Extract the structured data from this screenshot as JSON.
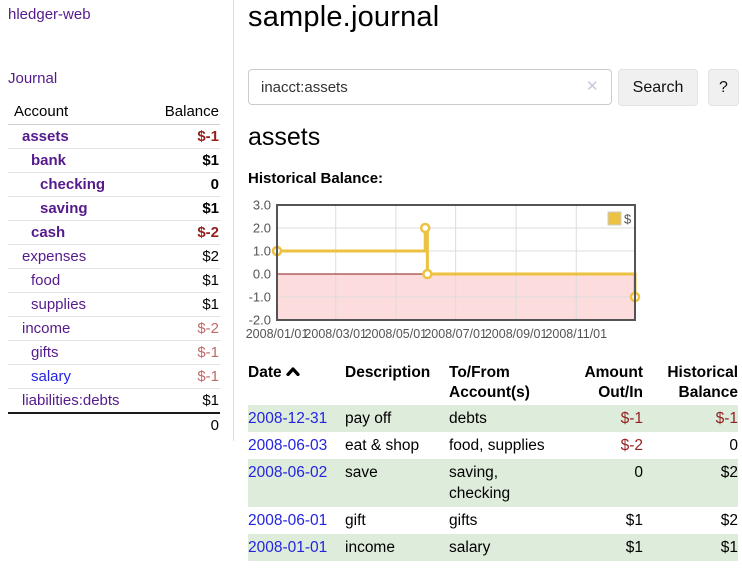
{
  "app": {
    "brand": "hledger-web"
  },
  "sidebar": {
    "journal_link": "Journal",
    "accounts": {
      "col_account": "Account",
      "col_balance": "Balance",
      "rows": [
        {
          "name": "assets",
          "balance": "$-1"
        },
        {
          "name": "bank",
          "balance": "$1"
        },
        {
          "name": "checking",
          "balance": "0"
        },
        {
          "name": "saving",
          "balance": "$1"
        },
        {
          "name": "cash",
          "balance": "$-2"
        },
        {
          "name": "expenses",
          "balance": "$2"
        },
        {
          "name": "food",
          "balance": "$1"
        },
        {
          "name": "supplies",
          "balance": "$1"
        },
        {
          "name": "income",
          "balance": "$-2"
        },
        {
          "name": "gifts",
          "balance": "$-1"
        },
        {
          "name": "salary",
          "balance": "$-1"
        },
        {
          "name": "liabilities:debts",
          "balance": "$1"
        }
      ],
      "total": "0"
    }
  },
  "main": {
    "title": "sample.journal",
    "search": {
      "value": "inacct:assets",
      "clear": "✕",
      "search_button": "Search",
      "help_button": "?"
    },
    "account_heading": "assets",
    "chart_title": "Historical Balance:"
  },
  "chart_data": {
    "type": "line",
    "step": true,
    "title": "Historical Balance:",
    "ylim": [
      -2,
      3
    ],
    "yticks": [
      "3.0",
      "2.0",
      "1.0",
      "0.0",
      "-1.0",
      "-2.0"
    ],
    "ytick_values": [
      3,
      2,
      1,
      0,
      -1,
      -2
    ],
    "xticks": [
      {
        "label": "2008/01/01",
        "pos": 0.0
      },
      {
        "label": "2008/03/01",
        "pos": 0.164
      },
      {
        "label": "2008/05/01",
        "pos": 0.332
      },
      {
        "label": "2008/07/01",
        "pos": 0.499
      },
      {
        "label": "2008/09/01",
        "pos": 0.668
      },
      {
        "label": "2008/11/01",
        "pos": 0.836
      }
    ],
    "x_range": [
      "2008/01/01",
      "2008/12/31"
    ],
    "legend": {
      "label": "$",
      "position": "top-right"
    },
    "grid": true,
    "negative_region": true,
    "colors": {
      "line": "#edc240",
      "negative_fill": "#fcdcdc",
      "zero_line": "#8b1a1a",
      "border": "#545454",
      "gridline": "#dcdcdc",
      "tick_text": "#545454"
    },
    "series": [
      {
        "name": "$",
        "color": "#edc240",
        "points": [
          {
            "date": "2008-01-01",
            "pos": 0.0,
            "value": 1
          },
          {
            "date": "2008-06-01",
            "pos": 0.414,
            "value": 2
          },
          {
            "date": "2008-06-03",
            "pos": 0.42,
            "value": 0
          },
          {
            "date": "2008-12-31",
            "pos": 1.0,
            "value": -1
          }
        ]
      }
    ]
  },
  "register": {
    "headers": {
      "date": "Date",
      "description": "Description",
      "accounts": "To/From Account(s)",
      "amount": "Amount Out/In",
      "balance": "Historical Balance"
    },
    "rows": [
      {
        "date": "2008-12-31",
        "description": "pay off",
        "accounts": "debts",
        "amount": "$-1",
        "balance": "$-1"
      },
      {
        "date": "2008-06-03",
        "description": "eat & shop",
        "accounts": "food, supplies",
        "amount": "$-2",
        "balance": "0"
      },
      {
        "date": "2008-06-02",
        "description": "save",
        "accounts": "saving, checking",
        "amount": "0",
        "balance": "$2"
      },
      {
        "date": "2008-06-01",
        "description": "gift",
        "accounts": "gifts",
        "amount": "$1",
        "balance": "$2"
      },
      {
        "date": "2008-01-01",
        "description": "income",
        "accounts": "salary",
        "amount": "$1",
        "balance": "$1"
      }
    ]
  }
}
